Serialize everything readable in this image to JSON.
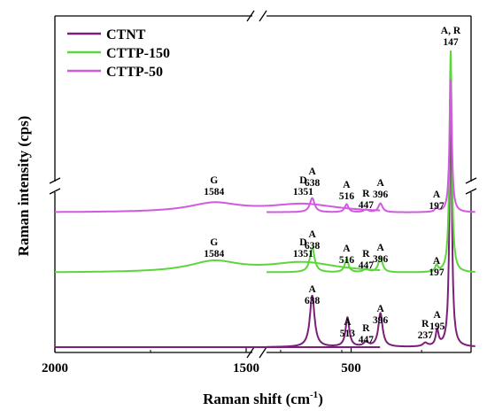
{
  "chart_data": {
    "type": "line",
    "xlabel": "Raman shift (cm",
    "xlabel_sup": "-1",
    "xlabel_close": ")",
    "ylabel": "Raman intensity (cps)",
    "x_reversed": true,
    "x_axis_break": [
      1150,
      800
    ],
    "y_axis_break": "between CTNT and CTTP-50 (upper region compressed)",
    "xlim": [
      2000,
      60
    ],
    "xticks": [
      {
        "value": 2000,
        "label": "2000"
      },
      {
        "value": 1500,
        "label": "1500"
      },
      {
        "value": 500,
        "label": "500"
      }
    ],
    "legend": {
      "position": "top-left"
    },
    "series": [
      {
        "name": "CTNT",
        "color": "#7b1f7b",
        "peaks": [
          {
            "x": 638,
            "h": 58,
            "w": 10
          },
          {
            "x": 513,
            "h": 33,
            "w": 8
          },
          {
            "x": 447,
            "h": 5,
            "w": 10
          },
          {
            "x": 396,
            "h": 38,
            "w": 9
          },
          {
            "x": 237,
            "h": 4,
            "w": 10
          },
          {
            "x": 195,
            "h": 18,
            "w": 6
          },
          {
            "x": 147,
            "h": 290,
            "w": 5
          }
        ],
        "annotations": [
          {
            "x": 638,
            "label": "A",
            "value": "638"
          },
          {
            "x": 513,
            "label": "A",
            "value": "513"
          },
          {
            "x": 447,
            "label": "R",
            "value": "447"
          },
          {
            "x": 396,
            "label": "A",
            "value": "396"
          },
          {
            "x": 237,
            "label": "R",
            "value": "237"
          },
          {
            "x": 195,
            "label": "A",
            "value": "195"
          }
        ]
      },
      {
        "name": "CTTP-150",
        "color": "#5cd63a",
        "peaks": [
          {
            "x": 1584,
            "h": 12,
            "w": 80
          },
          {
            "x": 1351,
            "h": 11,
            "w": 110
          },
          {
            "x": 638,
            "h": 28,
            "w": 10
          },
          {
            "x": 516,
            "h": 15,
            "w": 8
          },
          {
            "x": 447,
            "h": 4,
            "w": 10
          },
          {
            "x": 396,
            "h": 17,
            "w": 9
          },
          {
            "x": 197,
            "h": 7,
            "w": 6
          },
          {
            "x": 147,
            "h": 250,
            "w": 5
          }
        ],
        "annotations": [
          {
            "x": 1584,
            "label": "G",
            "value": "1584"
          },
          {
            "x": 1351,
            "label": "D",
            "value": "1351"
          },
          {
            "x": 638,
            "label": "A",
            "value": "638"
          },
          {
            "x": 516,
            "label": "A",
            "value": "516"
          },
          {
            "x": 447,
            "label": "R",
            "value": "447"
          },
          {
            "x": 396,
            "label": "A",
            "value": "396"
          },
          {
            "x": 197,
            "label": "A",
            "value": "197"
          }
        ]
      },
      {
        "name": "CTTP-50",
        "color": "#d25ae0",
        "peaks": [
          {
            "x": 1584,
            "h": 10,
            "w": 80
          },
          {
            "x": 1351,
            "h": 9,
            "w": 110
          },
          {
            "x": 638,
            "h": 16,
            "w": 10
          },
          {
            "x": 516,
            "h": 9,
            "w": 8
          },
          {
            "x": 447,
            "h": 3,
            "w": 10
          },
          {
            "x": 396,
            "h": 10,
            "w": 9
          },
          {
            "x": 197,
            "h": 5,
            "w": 6
          },
          {
            "x": 147,
            "h": 150,
            "w": 5
          }
        ],
        "annotations": [
          {
            "x": 1584,
            "label": "G",
            "value": "1584"
          },
          {
            "x": 1351,
            "label": "D",
            "value": "1351"
          },
          {
            "x": 638,
            "label": "A",
            "value": "638"
          },
          {
            "x": 516,
            "label": "A",
            "value": "516"
          },
          {
            "x": 447,
            "label": "R",
            "value": "447"
          },
          {
            "x": 396,
            "label": "A",
            "value": "396"
          },
          {
            "x": 197,
            "label": "A",
            "value": "197"
          }
        ]
      }
    ],
    "top_annotation": {
      "x": 147,
      "label": "A, R",
      "value": "147"
    }
  }
}
